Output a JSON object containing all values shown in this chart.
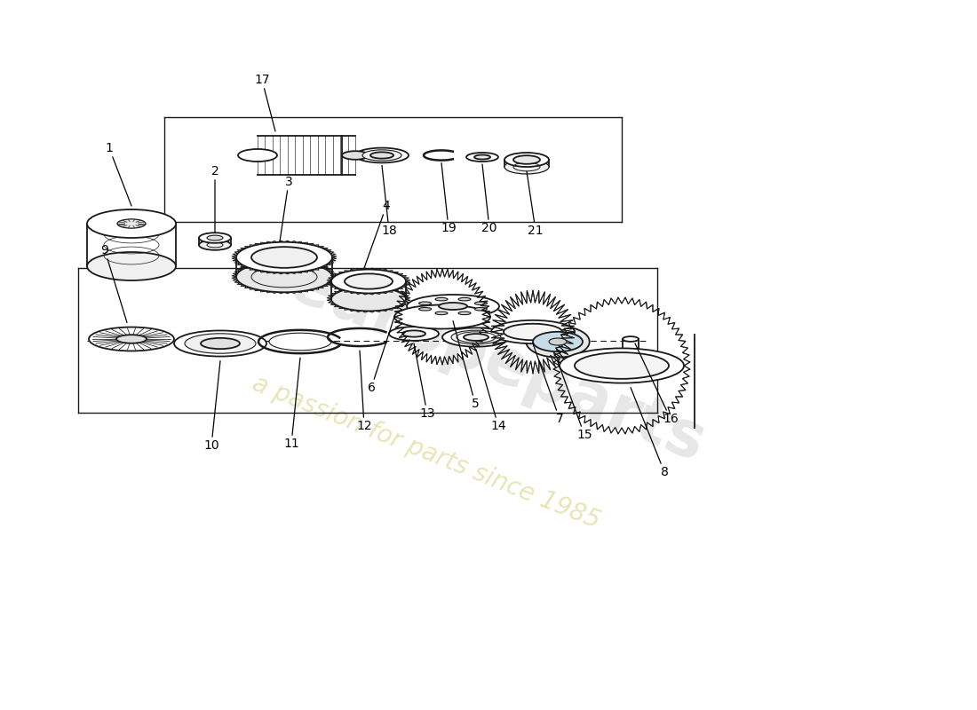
{
  "bg": "#ffffff",
  "lc": "#1a1a1a",
  "wm_color1": "#c8c860",
  "wm_color2": "#d0d0d0",
  "wm_alpha": 0.45,
  "iso_sy": 0.32,
  "parts_top": [
    1,
    2,
    3,
    4,
    5,
    6,
    7,
    8
  ],
  "parts_mid": [
    9,
    10,
    11,
    12,
    13,
    14,
    15,
    16
  ],
  "parts_bot": [
    17,
    18,
    19,
    20,
    21
  ]
}
